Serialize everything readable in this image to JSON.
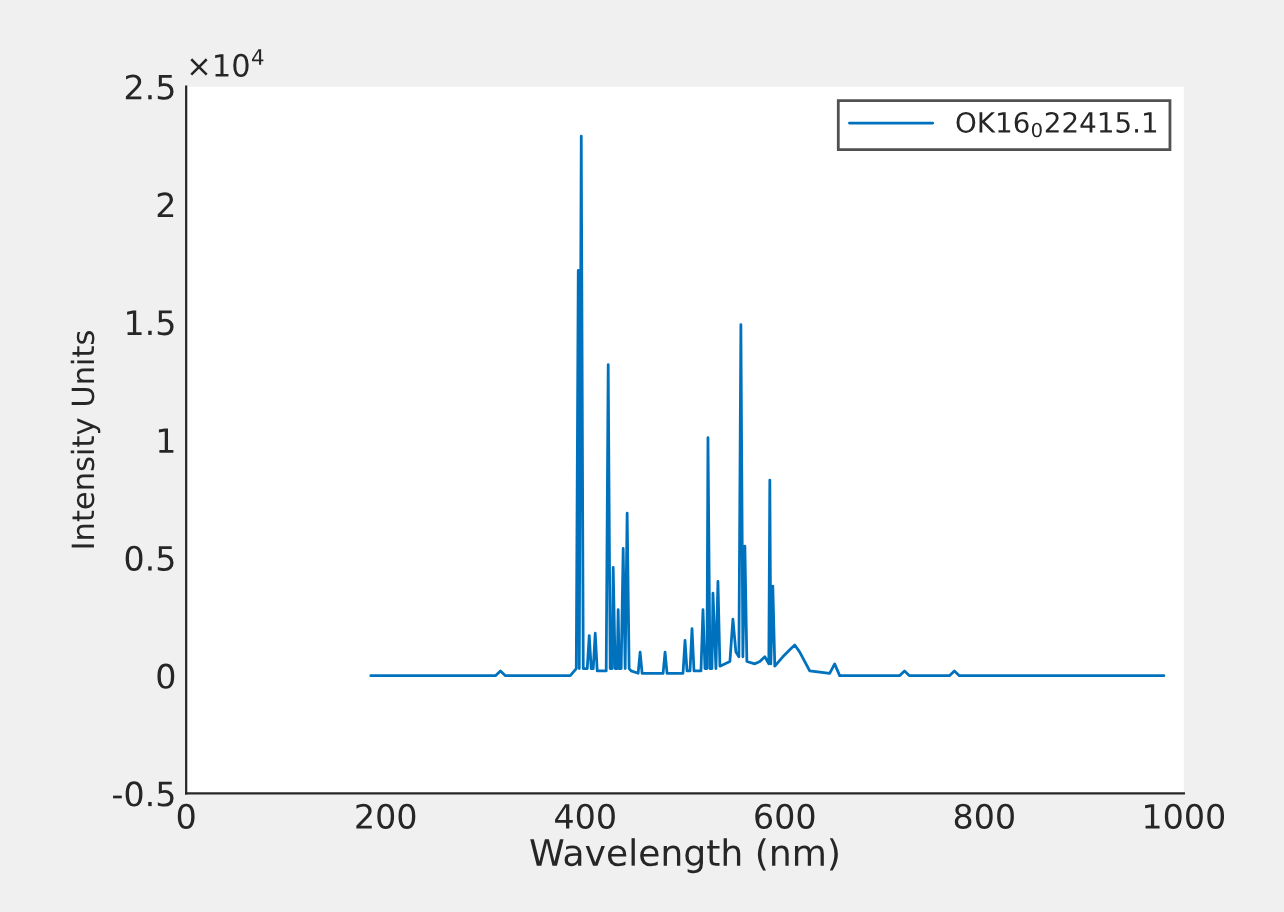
{
  "chart_data": {
    "type": "line",
    "xlabel": "Wavelength (nm)",
    "ylabel": "Intensity Units",
    "annotations": [
      "×10$^{4}$"
    ],
    "xlim": [
      0,
      1000
    ],
    "xticks": [
      0,
      200,
      400,
      600,
      800,
      1000
    ],
    "ylim": [
      -0.5,
      2.5
    ],
    "yticks": [
      -0.5,
      0,
      0.5,
      1,
      1.5,
      2,
      2.5
    ],
    "legend": "top right",
    "grid": false,
    "series": [
      {
        "name": "OK16$_{0}$22415.1",
        "color": "#0072bd",
        "x": [
          185,
          310,
          315,
          320,
          385,
          391,
          393,
          394,
          396,
          398,
          402,
          404,
          406,
          408,
          410,
          412,
          421,
          423,
          425,
          427,
          428,
          430,
          432,
          433,
          434,
          436,
          438,
          440,
          442,
          444,
          446,
          453,
          455,
          457,
          478,
          480,
          482,
          498,
          500,
          502,
          505,
          507,
          509,
          516,
          518,
          520,
          522,
          523,
          525,
          527,
          528,
          531,
          533,
          535,
          545,
          548,
          551,
          554,
          556,
          558,
          560,
          562,
          570,
          575,
          580,
          584,
          585,
          586,
          588,
          590,
          598,
          605,
          610,
          615,
          625,
          645,
          650,
          655,
          715,
          720,
          725,
          765,
          770,
          775,
          980
        ],
        "values": [
          0,
          0,
          0.02,
          0,
          0,
          0.03,
          1.72,
          0.03,
          2.29,
          0.03,
          0.03,
          0.17,
          0.03,
          0.03,
          0.18,
          0.02,
          0.02,
          1.32,
          0.03,
          0.03,
          0.46,
          0.03,
          0.03,
          0.28,
          0.03,
          0.03,
          0.54,
          0.03,
          0.69,
          0.03,
          0.02,
          0.01,
          0.1,
          0.01,
          0.01,
          0.1,
          0.01,
          0.01,
          0.15,
          0.02,
          0.02,
          0.2,
          0.02,
          0.02,
          0.28,
          0.03,
          0.03,
          1.01,
          0.03,
          0.03,
          0.35,
          0.03,
          0.4,
          0.04,
          0.06,
          0.24,
          0.1,
          0.08,
          1.49,
          0.08,
          0.55,
          0.06,
          0.05,
          0.06,
          0.08,
          0.05,
          0.83,
          0.05,
          0.38,
          0.04,
          0.08,
          0.11,
          0.13,
          0.1,
          0.02,
          0.01,
          0.05,
          0,
          0,
          0.02,
          0,
          0,
          0.02,
          0,
          0
        ]
      }
    ]
  }
}
